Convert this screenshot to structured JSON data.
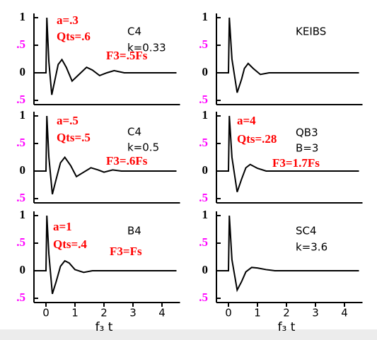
{
  "chart_data": [
    {
      "type": "line",
      "x": [
        -0.4,
        -0.05,
        0,
        0.03,
        0.1,
        0.2,
        0.3,
        0.42,
        0.55,
        0.7,
        0.9,
        1.1,
        1.4,
        1.6,
        1.85,
        2.1,
        2.35,
        2.7,
        3.2,
        4.5
      ],
      "values": [
        0,
        0,
        0,
        1,
        0.2,
        -0.4,
        -0.15,
        0.15,
        0.24,
        0.1,
        -0.15,
        -0.05,
        0.1,
        0.05,
        -0.05,
        0,
        0.04,
        0,
        0,
        0
      ],
      "color": "#000000",
      "xlim": [
        -0.4,
        4.5
      ],
      "ylim": [
        -0.5,
        1
      ],
      "yticks": [
        1,
        {
          "value": 0.5,
          "label": ".5"
        },
        0,
        {
          "value": -0.5,
          "label": ".5"
        }
      ],
      "ytick_label_colors": [
        "#000000",
        "#ff00ff",
        "#000000",
        "#ff00ff"
      ],
      "annotations": [
        {
          "text": "a=.3",
          "color": "#ff0000"
        },
        {
          "text": "Qts=.6",
          "color": "#ff0000"
        },
        {
          "text": "C4",
          "color": "#000000"
        },
        {
          "text": "k=0.33",
          "color": "#000000"
        },
        {
          "text": "F3=.5Fs",
          "color": "#ff0000"
        }
      ]
    },
    {
      "type": "line",
      "x": [
        -0.4,
        -0.05,
        0,
        0.03,
        0.12,
        0.3,
        0.45,
        0.55,
        0.68,
        0.85,
        1.1,
        1.4,
        2,
        4.5
      ],
      "values": [
        0,
        0,
        0,
        1,
        0.25,
        -0.36,
        -0.12,
        0.08,
        0.17,
        0.08,
        -0.03,
        0,
        0,
        0
      ],
      "color": "#000000",
      "xlim": [
        -0.4,
        4.5
      ],
      "ylim": [
        -0.5,
        1
      ],
      "yticks": [
        1,
        {
          "value": 0.5,
          "label": ".5"
        },
        0,
        {
          "value": -0.5,
          "label": ".5"
        }
      ],
      "ytick_label_colors": [
        "#000000",
        "#ff00ff",
        "#000000",
        "#ff00ff"
      ],
      "annotations": [
        {
          "text": "KEIBS",
          "color": "#000000"
        }
      ]
    },
    {
      "type": "line",
      "x": [
        -0.4,
        -0.05,
        0,
        0.03,
        0.1,
        0.22,
        0.35,
        0.5,
        0.65,
        0.85,
        1.05,
        1.3,
        1.55,
        1.8,
        2.0,
        2.3,
        2.6,
        3,
        4.5
      ],
      "values": [
        0,
        0,
        0,
        1,
        0.25,
        -0.42,
        -0.15,
        0.15,
        0.25,
        0.1,
        -0.1,
        -0.02,
        0.06,
        0.02,
        -0.02,
        0.02,
        0,
        0,
        0
      ],
      "color": "#000000",
      "xlim": [
        -0.4,
        4.5
      ],
      "ylim": [
        -0.5,
        1
      ],
      "yticks": [
        1,
        {
          "value": 0.5,
          "label": ".5"
        },
        0,
        {
          "value": -0.5,
          "label": ".5"
        }
      ],
      "ytick_label_colors": [
        "#000000",
        "#ff00ff",
        "#000000",
        "#ff00ff"
      ],
      "annotations": [
        {
          "text": "a=.5",
          "color": "#ff0000"
        },
        {
          "text": "Qts=.5",
          "color": "#ff0000"
        },
        {
          "text": "C4",
          "color": "#000000"
        },
        {
          "text": "k=0.5",
          "color": "#000000"
        },
        {
          "text": "F3=.6Fs",
          "color": "#ff0000"
        }
      ]
    },
    {
      "type": "line",
      "x": [
        -0.4,
        -0.05,
        0,
        0.03,
        0.12,
        0.3,
        0.45,
        0.6,
        0.75,
        1,
        1.3,
        4.5
      ],
      "values": [
        0,
        0,
        0,
        1,
        0.25,
        -0.38,
        -0.15,
        0.06,
        0.12,
        0.05,
        0,
        0
      ],
      "color": "#000000",
      "xlim": [
        -0.4,
        4.5
      ],
      "ylim": [
        -0.5,
        1
      ],
      "yticks": [
        1,
        {
          "value": 0.5,
          "label": ".5"
        },
        0,
        {
          "value": -0.5,
          "label": ".5"
        }
      ],
      "ytick_label_colors": [
        "#000000",
        "#ff00ff",
        "#000000",
        "#ff00ff"
      ],
      "annotations": [
        {
          "text": "a=4",
          "color": "#ff0000"
        },
        {
          "text": "Qts=.28",
          "color": "#ff0000"
        },
        {
          "text": "QB3",
          "color": "#000000"
        },
        {
          "text": "B=3",
          "color": "#000000"
        },
        {
          "text": "F3=1.7Fs",
          "color": "#ff0000"
        }
      ]
    },
    {
      "type": "line",
      "x": [
        -0.4,
        -0.05,
        0,
        0.03,
        0.1,
        0.22,
        0.35,
        0.5,
        0.65,
        0.8,
        1.0,
        1.3,
        1.6,
        4.5
      ],
      "values": [
        0,
        0,
        0,
        1,
        0.3,
        -0.42,
        -0.2,
        0.08,
        0.18,
        0.14,
        0.02,
        -0.03,
        0,
        0
      ],
      "color": "#000000",
      "xlim": [
        -0.4,
        4.5
      ],
      "ylim": [
        -0.5,
        1
      ],
      "yticks": [
        1,
        {
          "value": 0.5,
          "label": ".5"
        },
        0,
        {
          "value": -0.5,
          "label": ".5"
        }
      ],
      "ytick_label_colors": [
        "#000000",
        "#ff00ff",
        "#000000",
        "#ff00ff"
      ],
      "xticks": [
        0,
        1,
        2,
        3,
        4
      ],
      "xlabel": "f₃ t",
      "annotations": [
        {
          "text": "a=1",
          "color": "#ff0000"
        },
        {
          "text": "Qts=.4",
          "color": "#ff0000"
        },
        {
          "text": "B4",
          "color": "#000000"
        },
        {
          "text": "F3=Fs",
          "color": "#ff0000"
        }
      ]
    },
    {
      "type": "line",
      "x": [
        -0.4,
        -0.05,
        0,
        0.03,
        0.12,
        0.3,
        0.45,
        0.6,
        0.8,
        1.0,
        1.3,
        1.6,
        4.5
      ],
      "values": [
        0,
        0,
        0,
        1,
        0.2,
        -0.35,
        -0.2,
        -0.02,
        0.06,
        0.05,
        0.02,
        0,
        0
      ],
      "color": "#000000",
      "xlim": [
        -0.4,
        4.5
      ],
      "ylim": [
        -0.5,
        1
      ],
      "yticks": [
        1,
        {
          "value": 0.5,
          "label": ".5"
        },
        0,
        {
          "value": -0.5,
          "label": ".5"
        }
      ],
      "ytick_label_colors": [
        "#000000",
        "#ff00ff",
        "#000000",
        "#ff00ff"
      ],
      "xticks": [
        0,
        1,
        2,
        3,
        4
      ],
      "xlabel": "f₃ t",
      "annotations": [
        {
          "text": "SC4",
          "color": "#000000"
        },
        {
          "text": "k=3.6",
          "color": "#000000"
        }
      ]
    }
  ]
}
